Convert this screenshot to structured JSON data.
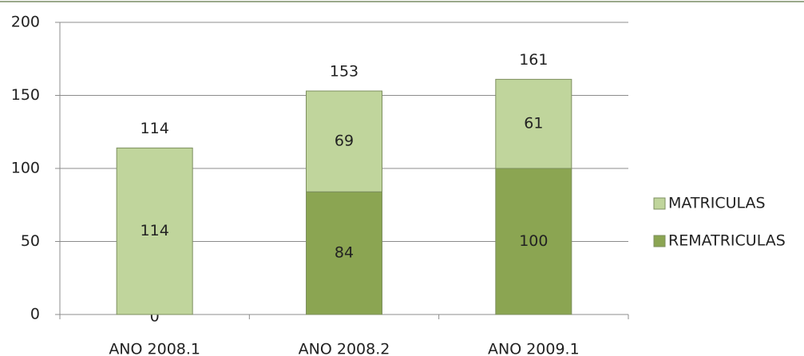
{
  "chart_data": {
    "type": "stacked_bar",
    "categories": [
      "ANO 2008.1",
      "ANO 2008.2",
      "ANO 2009.1"
    ],
    "series": [
      {
        "name": "REMATRICULAS",
        "color": "#8ba552",
        "values": [
          0,
          84,
          100
        ]
      },
      {
        "name": "MATRICULAS",
        "color": "#c0d59c",
        "values": [
          114,
          69,
          61
        ]
      }
    ],
    "totals": [
      114,
      153,
      161
    ],
    "ylim": [
      0,
      200
    ],
    "yticks": [
      0,
      50,
      100,
      150,
      200
    ],
    "grid": true,
    "legend": "right"
  }
}
